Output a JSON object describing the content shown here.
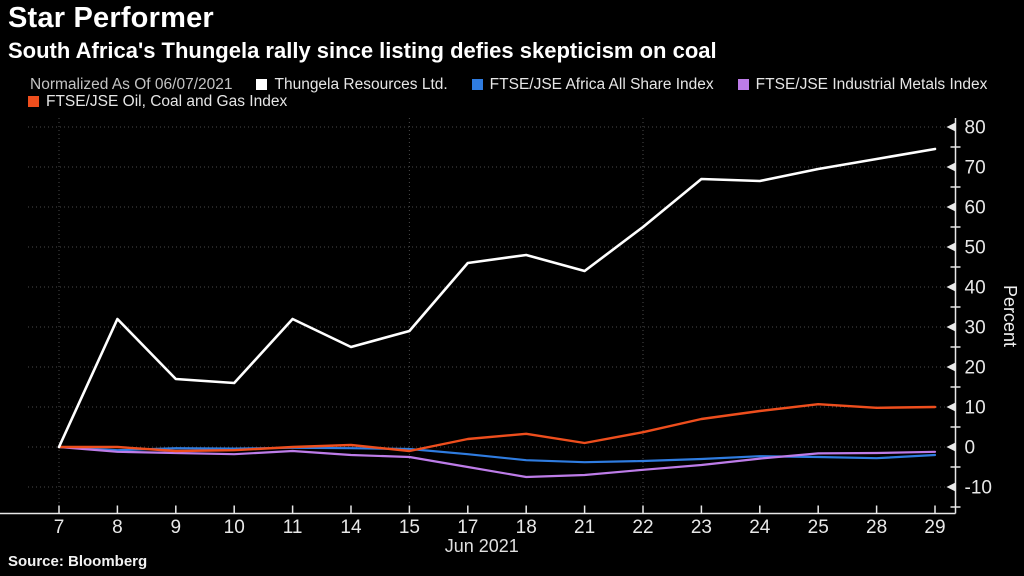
{
  "header": {
    "title": "Star Performer",
    "subtitle": "South Africa's Thungela rally since listing defies skepticism on coal"
  },
  "legend": {
    "note": "Normalized As Of 06/07/2021",
    "items": [
      {
        "label": "Thungela Resources Ltd.",
        "color": "#ffffff"
      },
      {
        "label": "FTSE/JSE Africa All Share Index",
        "color": "#2f7ce0"
      },
      {
        "label": "FTSE/JSE Industrial Metals Index",
        "color": "#bd7ce8"
      },
      {
        "label": "FTSE/JSE Oil, Coal and Gas Index",
        "color": "#ee4e1d"
      }
    ]
  },
  "source": "Source: Bloomberg",
  "chart_data": {
    "type": "line",
    "title": "Star Performer",
    "subtitle": "South Africa's Thungela rally since listing defies skepticism on coal",
    "x_categories": [
      "7",
      "8",
      "9",
      "10",
      "11",
      "14",
      "15",
      "17",
      "18",
      "21",
      "22",
      "23",
      "24",
      "25",
      "28",
      "29"
    ],
    "x_axis_label": "Jun 2021",
    "y_axis_label": "Percent",
    "ylim": [
      -16.5,
      82.25
    ],
    "yticks": [
      -10,
      0,
      10,
      20,
      30,
      40,
      50,
      60,
      70,
      80
    ],
    "y_minor_step": 5,
    "grid": true,
    "grid_vertical_at": [
      "7",
      "15",
      "22"
    ],
    "legend_position": "top",
    "axis_color": "#e8e8e8",
    "grid_color": "#4a4a4a",
    "series": [
      {
        "name": "Thungela Resources Ltd.",
        "color": "#ffffff",
        "width": 2.6,
        "values": [
          0,
          32,
          17,
          16,
          32,
          25,
          29,
          46,
          48,
          44,
          55,
          67,
          66.5,
          69.5,
          72,
          74.5
        ]
      },
      {
        "name": "FTSE/JSE Africa All Share Index",
        "color": "#2f7ce0",
        "width": 2.2,
        "values": [
          0,
          -0.8,
          -0.3,
          -0.4,
          -0.2,
          -0.3,
          -0.5,
          -1.8,
          -3.3,
          -3.8,
          -3.5,
          -3.0,
          -2.3,
          -2.5,
          -2.8,
          -2.0
        ]
      },
      {
        "name": "FTSE/JSE Industrial Metals Index",
        "color": "#bd7ce8",
        "width": 2.2,
        "values": [
          0,
          -1.2,
          -1.5,
          -1.8,
          -1.0,
          -2.0,
          -2.5,
          -5.0,
          -7.5,
          -7.0,
          -5.7,
          -4.5,
          -2.9,
          -1.6,
          -1.5,
          -1.2
        ]
      },
      {
        "name": "FTSE/JSE Oil, Coal and Gas Index",
        "color": "#ee4e1d",
        "width": 2.4,
        "values": [
          0,
          0,
          -1.0,
          -0.8,
          0,
          0.5,
          -1.0,
          2.0,
          3.3,
          1.0,
          3.7,
          7.0,
          9.0,
          10.7,
          9.8,
          10.0
        ]
      }
    ]
  }
}
